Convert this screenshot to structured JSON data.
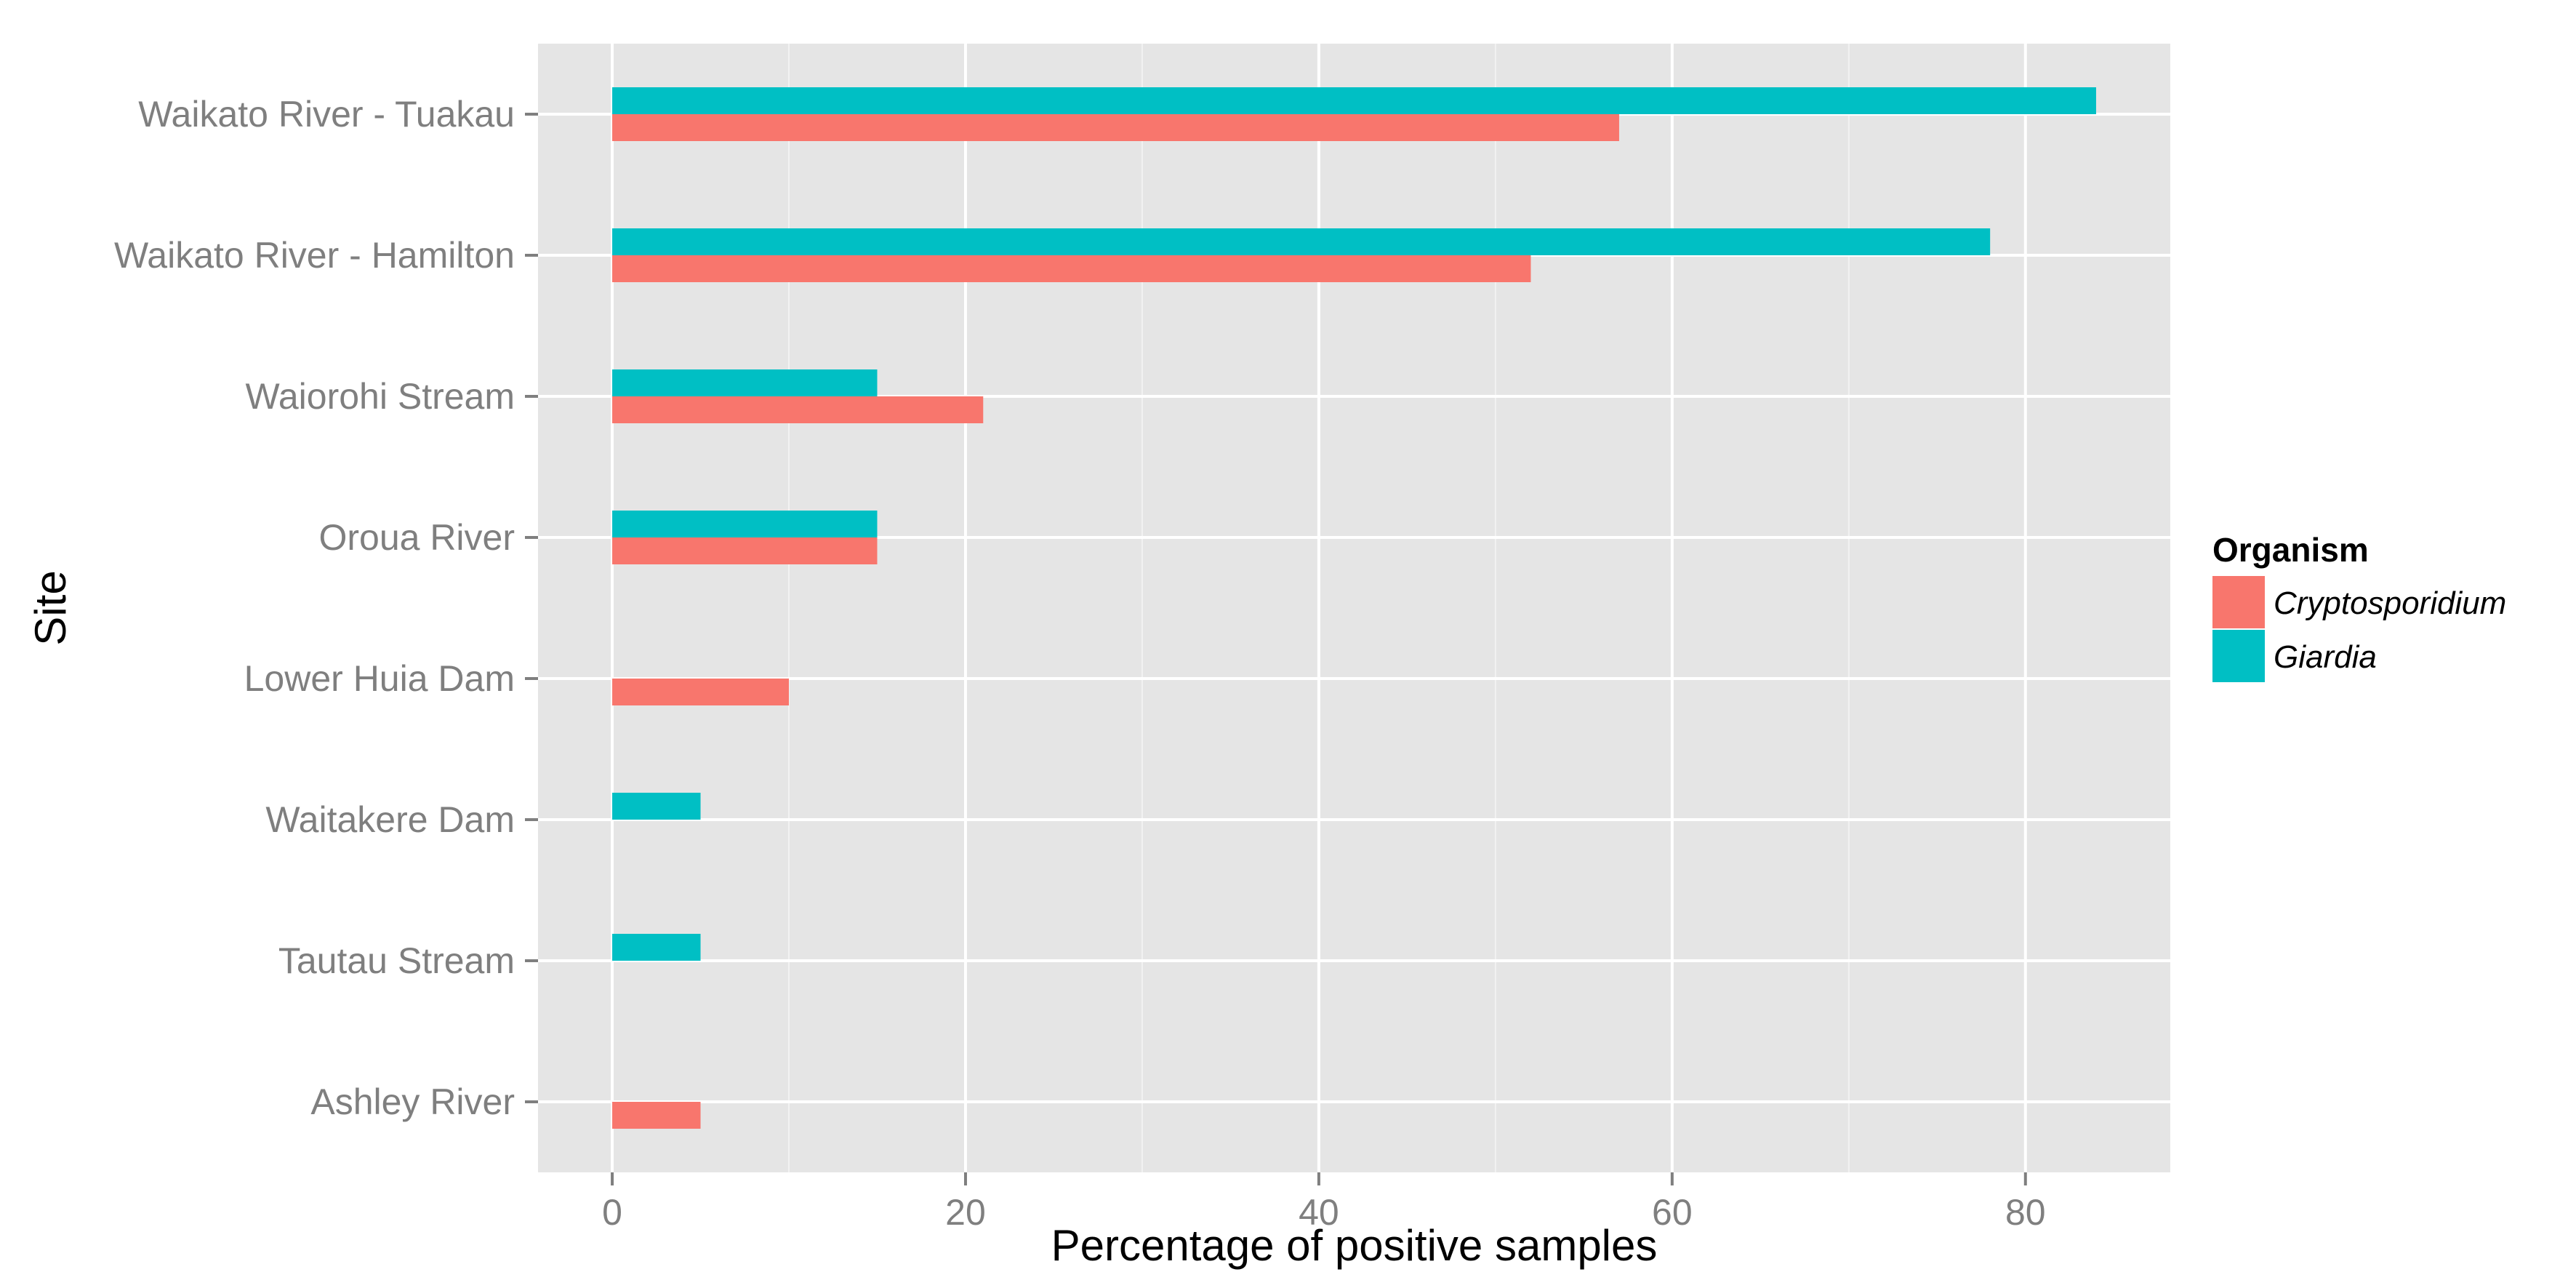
{
  "chart_data": {
    "type": "bar",
    "orientation": "horizontal",
    "categories": [
      "Waikato River - Tuakau",
      "Waikato River - Hamilton",
      "Waiorohi Stream",
      "Oroua River",
      "Lower Huia Dam",
      "Waitakere Dam",
      "Tautau Stream",
      "Ashley River"
    ],
    "series": [
      {
        "name": "Cryptosporidium",
        "color": "#f8766d",
        "values": [
          57,
          52,
          21,
          15,
          10,
          0,
          0,
          5
        ]
      },
      {
        "name": "Giardia",
        "color": "#00bfc4",
        "values": [
          84,
          78,
          15,
          15,
          0,
          5,
          5,
          0
        ]
      }
    ],
    "xlabel": "Percentage of positive samples",
    "ylabel": "Site",
    "xlim": [
      -4.2,
      88.2
    ],
    "xticks": [
      0,
      20,
      40,
      60,
      80
    ],
    "legend": {
      "title": "Organism",
      "position": "right"
    },
    "grid": true,
    "panel_background": "#e5e5e5"
  }
}
